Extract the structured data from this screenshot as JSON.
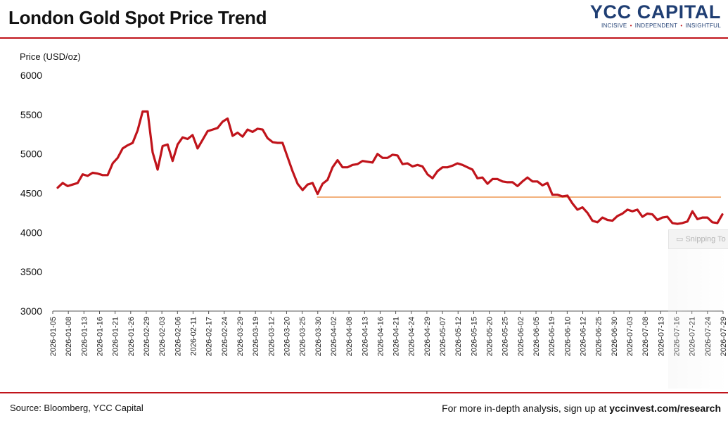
{
  "header": {
    "title": "London Gold Spot Price Trend",
    "brand_name": "YCC CAPITAL",
    "brand_tagline": [
      "INCISIVE",
      "INDEPENDENT",
      "INSIGHTFUL"
    ]
  },
  "footer": {
    "source": "Source: Bloomberg, YCC Capital",
    "cta_text": "For more in-depth analysis, sign up at ",
    "cta_link": "yccinvest.com/research"
  },
  "overlay": {
    "snipping_label": "Snipping To"
  },
  "colors": {
    "series": "#c0141b",
    "reference_line": "#f0a060",
    "brand": "#1f3e73",
    "rule": "#c0141b"
  },
  "chart_data": {
    "type": "line",
    "ylabel": "Price (USD/oz)",
    "xlabel": "",
    "ylim": [
      3000,
      6000
    ],
    "yticks": [
      3000,
      3500,
      4000,
      4500,
      5000,
      5500,
      6000
    ],
    "grid": false,
    "xtick_labels": [
      "2026-01-05",
      "2026-01-08",
      "2026-01-13",
      "2026-01-16",
      "2026-01-21",
      "2026-01-26",
      "2026-02-29",
      "2026-02-03",
      "2026-02-06",
      "2026-02-11",
      "2026-02-17",
      "2026-02-24",
      "2026-03-29",
      "2026-03-19",
      "2026-03-12",
      "2026-03-20",
      "2026-03-25",
      "2026-03-30",
      "2026-04-02",
      "2026-04-08",
      "2026-04-13",
      "2026-04-16",
      "2026-04-21",
      "2026-04-24",
      "2026-04-29",
      "2026-05-07",
      "2026-05-12",
      "2026-05-15",
      "2026-05-20",
      "2026-05-25",
      "2026-06-02",
      "2026-06-05",
      "2026-06-19",
      "2026-06-10",
      "2026-06-12",
      "2026-06-25",
      "2026-06-30",
      "2026-07-03",
      "2026-07-08",
      "2026-07-13",
      "2026-07-16",
      "2026-07-21",
      "2026-07-24",
      "2026-07-29"
    ],
    "series": [
      {
        "values": [
          4570,
          4630,
          4590,
          4610,
          4630,
          4740,
          4720,
          4760,
          4750,
          4730,
          4730,
          4880,
          4950,
          5070,
          5110,
          5140,
          5300,
          5540,
          5540,
          5020,
          4800,
          5100,
          5120,
          4910,
          5120,
          5210,
          5190,
          5240,
          5070,
          5180,
          5290,
          5310,
          5330,
          5410,
          5450,
          5230,
          5270,
          5220,
          5310,
          5280,
          5320,
          5310,
          5200,
          5150,
          5140,
          5140,
          4960,
          4780,
          4620,
          4540,
          4610,
          4630,
          4490,
          4620,
          4670,
          4830,
          4920,
          4830,
          4830,
          4860,
          4870,
          4910,
          4900,
          4890,
          5000,
          4950,
          4950,
          4990,
          4980,
          4870,
          4880,
          4840,
          4860,
          4840,
          4740,
          4690,
          4780,
          4830,
          4830,
          4850,
          4880,
          4860,
          4830,
          4800,
          4690,
          4700,
          4620,
          4680,
          4680,
          4650,
          4640,
          4640,
          4590,
          4650,
          4700,
          4650,
          4650,
          4600,
          4630,
          4480,
          4480,
          4460,
          4470,
          4370,
          4290,
          4320,
          4250,
          4150,
          4130,
          4190,
          4160,
          4150,
          4210,
          4240,
          4290,
          4270,
          4290,
          4200,
          4240,
          4230,
          4160,
          4190,
          4200,
          4120,
          4110,
          4120,
          4140,
          4270,
          4170,
          4190,
          4190,
          4130,
          4120,
          4230
        ]
      }
    ],
    "reference_line": {
      "y": 4450,
      "x_start": "2026-03-30",
      "x_end": "2026-07-29"
    }
  }
}
